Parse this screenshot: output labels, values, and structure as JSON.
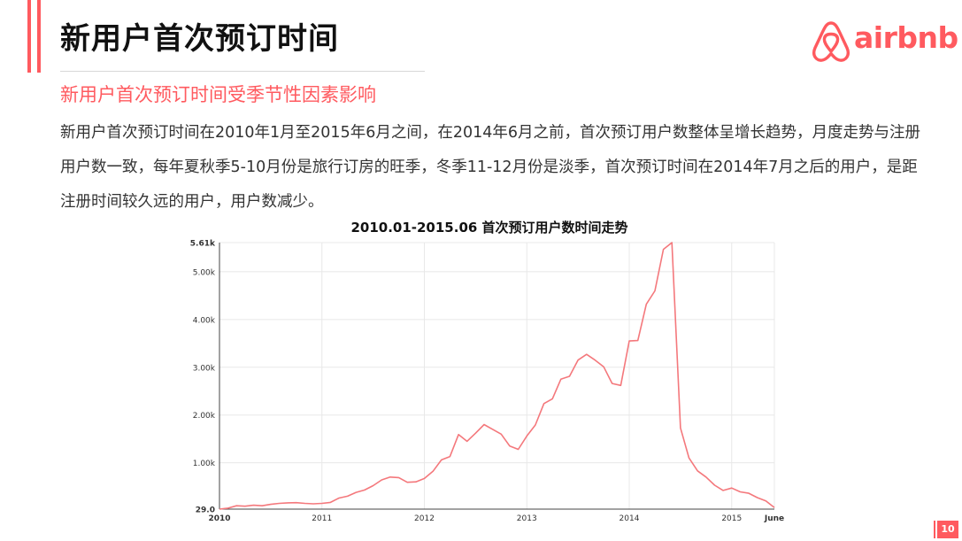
{
  "slide": {
    "title": "新用户首次预订时间",
    "subtitle": "新用户首次预订时间受季节性因素影响",
    "body": "新用户首次预订时间在2010年1月至2015年6月之间，在2014年6月之前，首次预订用户数整体呈增长趋势，月度走势与注册用户数一致，每年夏秋季5-10月份是旅行订房的旺季，冬季11-12月份是淡季，首次预订时间在2014年7月之后的用户，是距注册时间较久远的用户，用户数减少。",
    "brand": "airbnb",
    "page_number": "10",
    "colors": {
      "accent": "#ff5a5f",
      "line": "#f4787c",
      "grid": "#e8e8e8",
      "axis": "#444444"
    }
  },
  "chart_data": {
    "type": "line",
    "title": "2010.01-2015.06 首次预订用户数时间走势",
    "xlabel": "",
    "ylabel": "",
    "ylim": [
      29,
      5610
    ],
    "y_ticks": [
      {
        "value": 29,
        "label": "29.0"
      },
      {
        "value": 1000,
        "label": "1.00k"
      },
      {
        "value": 2000,
        "label": "2.00k"
      },
      {
        "value": 3000,
        "label": "3.00k"
      },
      {
        "value": 4000,
        "label": "4.00k"
      },
      {
        "value": 5000,
        "label": "5.00k"
      },
      {
        "value": 5610,
        "label": "5.61k"
      }
    ],
    "x_ticks": [
      {
        "index": 0,
        "label": "2010"
      },
      {
        "index": 12,
        "label": "2011"
      },
      {
        "index": 24,
        "label": "2012"
      },
      {
        "index": 36,
        "label": "2013"
      },
      {
        "index": 48,
        "label": "2014"
      },
      {
        "index": 60,
        "label": "2015"
      },
      {
        "index": 65,
        "label": "June"
      }
    ],
    "grid": true,
    "series": [
      {
        "name": "首次预订用户数",
        "x_start": "2010-01",
        "values": [
          29,
          50,
          100,
          90,
          110,
          100,
          130,
          150,
          160,
          165,
          150,
          140,
          150,
          170,
          260,
          300,
          380,
          430,
          520,
          640,
          700,
          690,
          590,
          600,
          670,
          820,
          1060,
          1130,
          1590,
          1450,
          1620,
          1800,
          1700,
          1600,
          1350,
          1280,
          1560,
          1790,
          2240,
          2340,
          2750,
          2810,
          3150,
          3270,
          3150,
          3010,
          2660,
          2620,
          3550,
          3560,
          4320,
          4600,
          5470,
          5610,
          1730,
          1100,
          830,
          700,
          530,
          420,
          470,
          390,
          360,
          270,
          200,
          60
        ]
      }
    ]
  }
}
